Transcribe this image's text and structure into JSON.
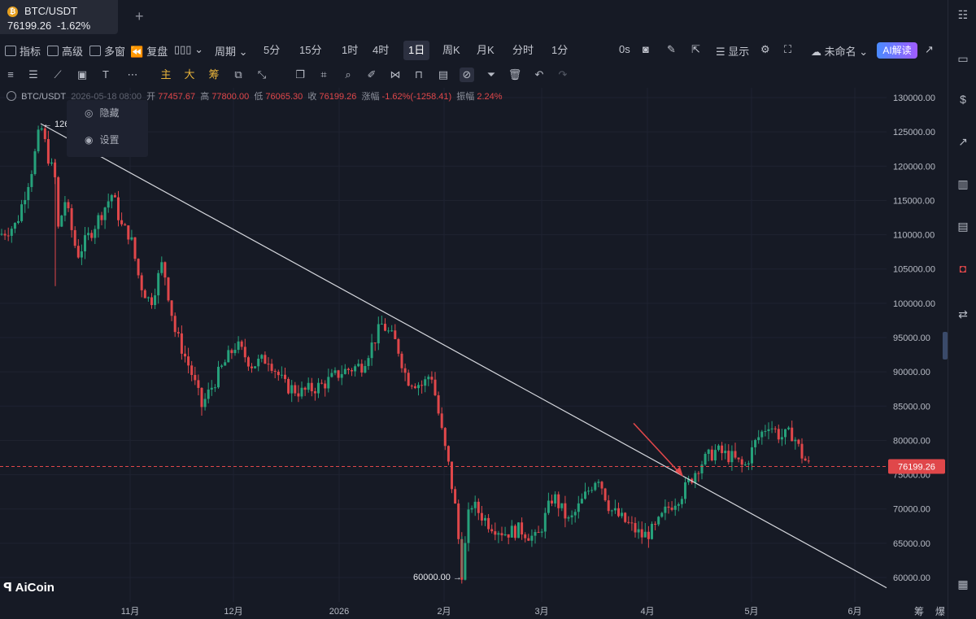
{
  "tab": {
    "symbol": "BTC/USDT",
    "price": "76199.26",
    "change": "-1.62%",
    "coin_icon": "bitcoin-icon",
    "add_icon": "+"
  },
  "toolbar": {
    "indicator": "指标",
    "advanced": "高级",
    "multi_window": "多窗",
    "replay": "复盘",
    "period": "周期",
    "timeframes": [
      "5分",
      "15分",
      "1时",
      "4时",
      "1日",
      "周K",
      "月K",
      "分时",
      "1分"
    ],
    "active_timeframe": "1日",
    "countdown": "0s",
    "display": "显示",
    "layout_name": "未命名",
    "ai_button": "AI解读"
  },
  "info_bar": {
    "symbol": "BTC/USDT",
    "datetime": "2026-05-18 08:00",
    "open_label": "开",
    "open": "77457.67",
    "high_label": "高",
    "high": "77800.00",
    "low_label": "低",
    "low": "76065.30",
    "close_label": "收",
    "close": "76199.26",
    "change_label": "涨幅",
    "change": "-1.62%(-1258.41)",
    "amplitude_label": "振幅",
    "amplitude": "2.24%"
  },
  "context_menu": {
    "hide": "隐藏",
    "settings": "设置"
  },
  "chart_data": {
    "type": "candlestick",
    "y_ticks": [
      "130000.00",
      "125000.00",
      "120000.00",
      "115000.00",
      "110000.00",
      "105000.00",
      "100000.00",
      "95000.00",
      "90000.00",
      "85000.00",
      "80000.00",
      "75000.00",
      "70000.00",
      "65000.00",
      "60000.00"
    ],
    "ylim": [
      57500,
      131000
    ],
    "x_ticks": [
      "11月",
      "12月",
      "2026",
      "2月",
      "3月",
      "4月",
      "5月",
      "6月"
    ],
    "current_price": "76199.26",
    "max_label": "126199.63",
    "min_label": "60000.00",
    "trendline_from": 126199.63,
    "trendline_to": 58500,
    "bottom_right_labels": [
      "筹",
      "爆"
    ],
    "colors": {
      "up": "#26a17b",
      "down": "#e0474a",
      "trendline": "#d6d8de",
      "price_line": "#e0474a",
      "arrow": "#e0474a"
    }
  },
  "logo": "AiCoin"
}
